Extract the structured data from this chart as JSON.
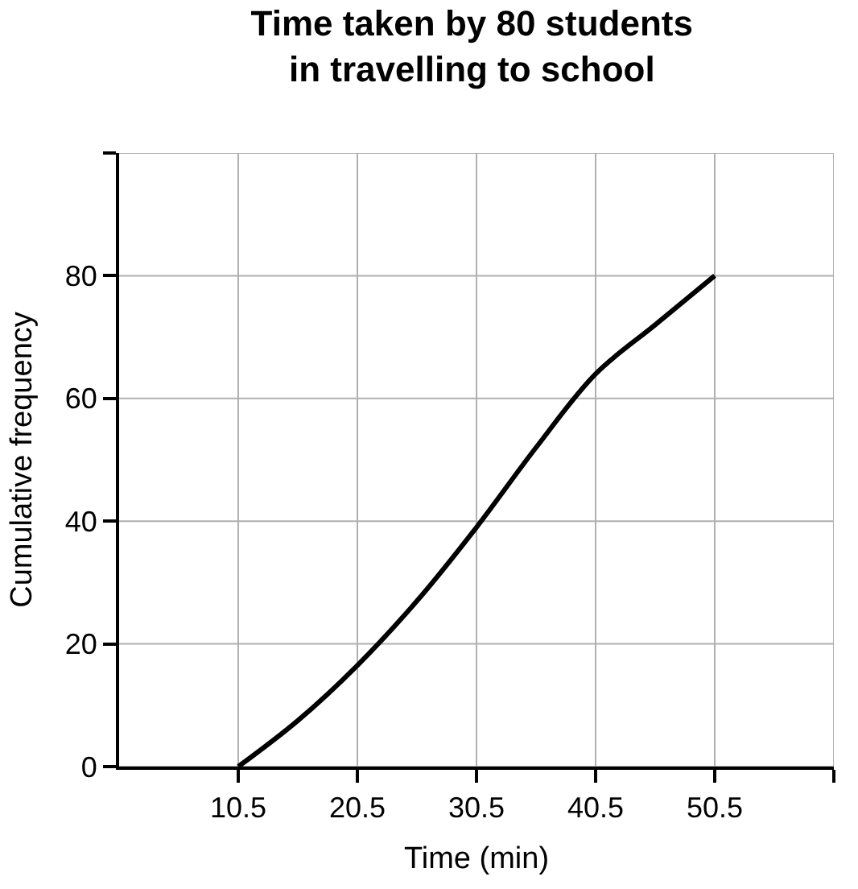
{
  "chart_data": {
    "type": "line",
    "title": "Time taken by 80 students\nin travelling to school",
    "xlabel": "Time (min)",
    "ylabel": "Cumulative frequency",
    "x": [
      10.5,
      15.5,
      20.5,
      25.5,
      30.5,
      35.5,
      40.5,
      45.5,
      50.5
    ],
    "series": [
      {
        "color": "#000000",
        "values": [
          0,
          7.5,
          16.5,
          27,
          39,
          52,
          64,
          72,
          80
        ]
      }
    ],
    "xlim": [
      0.5,
      60.5
    ],
    "xticks": [
      10.5,
      20.5,
      30.5,
      40.5,
      50.5,
      {
        "value": 60.5,
        "label": null
      }
    ],
    "ylim": [
      0,
      100
    ],
    "yticks": [
      0,
      20,
      40,
      60,
      80,
      {
        "value": 100,
        "label": null
      }
    ],
    "grid": true,
    "marker": "none",
    "line_style": "solid"
  }
}
